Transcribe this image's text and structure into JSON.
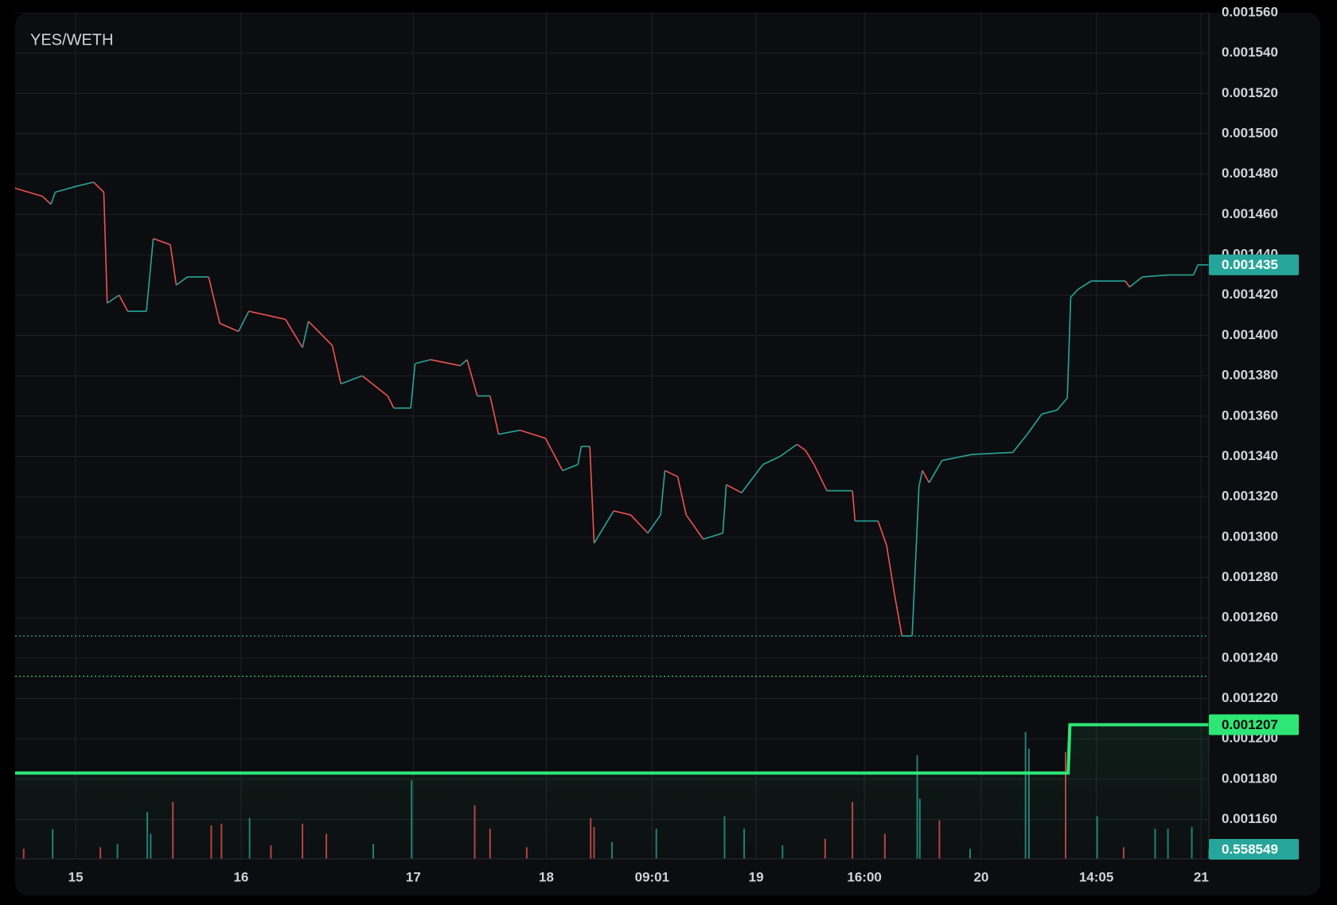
{
  "chart_data": {
    "type": "line",
    "title": "YES/WETH",
    "xlim": [
      0,
      1400
    ],
    "xticks": [
      {
        "value": 71,
        "label": "15"
      },
      {
        "value": 265,
        "label": "16"
      },
      {
        "value": 467,
        "label": "17"
      },
      {
        "value": 623,
        "label": "18"
      },
      {
        "value": 747,
        "label": "09:01"
      },
      {
        "value": 869,
        "label": "19"
      },
      {
        "value": 996,
        "label": "16:00"
      },
      {
        "value": 1133,
        "label": "20"
      },
      {
        "value": 1268,
        "label": "14:05"
      },
      {
        "value": 1391,
        "label": "21"
      }
    ],
    "ylim": [
      0.0011405,
      0.00156
    ],
    "yticks": [
      {
        "value": 0.00116,
        "label": "0.001160"
      },
      {
        "value": 0.00118,
        "label": "0.001180"
      },
      {
        "value": 0.0012,
        "label": "0.001200"
      },
      {
        "value": 0.00122,
        "label": "0.001220"
      },
      {
        "value": 0.00124,
        "label": "0.001240"
      },
      {
        "value": 0.00126,
        "label": "0.001260"
      },
      {
        "value": 0.00128,
        "label": "0.001280"
      },
      {
        "value": 0.0013,
        "label": "0.001300"
      },
      {
        "value": 0.00132,
        "label": "0.001320"
      },
      {
        "value": 0.00134,
        "label": "0.001340"
      },
      {
        "value": 0.00136,
        "label": "0.001360"
      },
      {
        "value": 0.00138,
        "label": "0.001380"
      },
      {
        "value": 0.0014,
        "label": "0.001400"
      },
      {
        "value": 0.00142,
        "label": "0.001420"
      },
      {
        "value": 0.00144,
        "label": "0.001440"
      },
      {
        "value": 0.00146,
        "label": "0.001460"
      },
      {
        "value": 0.00148,
        "label": "0.001480"
      },
      {
        "value": 0.0015,
        "label": "0.001500"
      },
      {
        "value": 0.00152,
        "label": "0.001520"
      },
      {
        "value": 0.00154,
        "label": "0.001540"
      },
      {
        "value": 0.00156,
        "label": "0.001560"
      }
    ],
    "grid": true,
    "y2lim": [
      0,
      8
    ],
    "price": {
      "up_color": "#26a69a",
      "down_color": "#ef5350",
      "x": [
        0,
        32,
        42,
        47,
        72,
        92,
        104,
        108,
        122,
        132,
        154,
        162,
        182,
        189,
        202,
        227,
        240,
        262,
        274,
        317,
        337,
        344,
        372,
        382,
        407,
        437,
        444,
        464,
        469,
        487,
        522,
        530,
        542,
        557,
        567,
        592,
        622,
        642,
        660,
        664,
        674,
        679,
        702,
        722,
        742,
        757,
        762,
        777,
        787,
        807,
        830,
        834,
        852,
        877,
        897,
        917,
        927,
        937,
        952,
        982,
        985,
        1012,
        1022,
        1032,
        1040,
        1052,
        1060,
        1064,
        1072,
        1087,
        1122,
        1170,
        1187,
        1204,
        1222,
        1234,
        1238,
        1247,
        1262,
        1302,
        1307,
        1322,
        1352,
        1382,
        1387,
        1400
      ],
      "values": [
        0.001473,
        0.001469,
        0.001465,
        0.001471,
        0.001474,
        0.001476,
        0.001471,
        0.001416,
        0.00142,
        0.001412,
        0.001412,
        0.001448,
        0.001445,
        0.001425,
        0.001429,
        0.001429,
        0.001406,
        0.001402,
        0.001412,
        0.001408,
        0.001394,
        0.001407,
        0.001395,
        0.001376,
        0.00138,
        0.00137,
        0.001364,
        0.001364,
        0.001386,
        0.001388,
        0.001385,
        0.001388,
        0.00137,
        0.00137,
        0.001351,
        0.001353,
        0.001349,
        0.001333,
        0.001336,
        0.001345,
        0.001345,
        0.001297,
        0.001313,
        0.001311,
        0.001302,
        0.001311,
        0.001333,
        0.00133,
        0.001311,
        0.001299,
        0.001302,
        0.001326,
        0.001322,
        0.001336,
        0.00134,
        0.001346,
        0.001343,
        0.001336,
        0.001323,
        0.001323,
        0.001308,
        0.001308,
        0.001296,
        0.00127,
        0.001251,
        0.001251,
        0.001325,
        0.001333,
        0.001327,
        0.001338,
        0.001341,
        0.001342,
        0.001351,
        0.001361,
        0.001363,
        0.001369,
        0.001419,
        0.001423,
        0.001427,
        0.001427,
        0.001424,
        0.001429,
        0.00143,
        0.00143,
        0.001435,
        0.001435
      ]
    },
    "level": {
      "color": "#2ee676",
      "x": [
        0,
        1235,
        1237,
        1400
      ],
      "values": [
        0.001183,
        0.001183,
        0.001207,
        0.001207
      ]
    },
    "price_lines": [
      {
        "value": 0.001251,
        "color": "#26a69a"
      },
      {
        "value": 0.001231,
        "color": "#2ee676"
      }
    ],
    "volume": {
      "axis": "y2",
      "x": [
        10,
        44,
        100,
        120,
        155,
        159,
        185,
        230,
        242,
        275,
        300,
        337,
        365,
        420,
        465,
        539,
        557,
        600,
        675,
        679,
        700,
        752,
        832,
        855,
        900,
        950,
        982,
        1020,
        1058,
        1061,
        1084,
        1120,
        1185,
        1189,
        1232,
        1269,
        1300,
        1337,
        1352,
        1380,
        1400
      ],
      "values": [
        0.6,
        1.78,
        0.7,
        0.9,
        2.8,
        1.5,
        3.4,
        2.0,
        2.1,
        2.45,
        0.8,
        2.1,
        1.5,
        0.9,
        4.7,
        3.2,
        1.8,
        0.7,
        2.45,
        1.9,
        1.0,
        1.8,
        2.55,
        1.8,
        0.8,
        1.2,
        3.4,
        1.5,
        6.2,
        3.6,
        2.3,
        0.6,
        7.6,
        6.6,
        6.4,
        2.55,
        0.7,
        1.8,
        1.8,
        1.9,
        0.558549
      ],
      "colors": [
        "#ef5350",
        "#26a69a",
        "#ef5350",
        "#26a69a",
        "#26a69a",
        "#26a69a",
        "#ef5350",
        "#ef5350",
        "#ef5350",
        "#26a69a",
        "#ef5350",
        "#ef5350",
        "#ef5350",
        "#26a69a",
        "#26a69a",
        "#ef5350",
        "#ef5350",
        "#ef5350",
        "#ef5350",
        "#ef5350",
        "#26a69a",
        "#26a69a",
        "#26a69a",
        "#26a69a",
        "#26a69a",
        "#ef5350",
        "#ef5350",
        "#ef5350",
        "#26a69a",
        "#26a69a",
        "#ef5350",
        "#26a69a",
        "#26a69a",
        "#26a69a",
        "#ef5350",
        "#26a69a",
        "#ef5350",
        "#26a69a",
        "#26a69a",
        "#26a69a",
        "#26a69a"
      ]
    }
  }
}
